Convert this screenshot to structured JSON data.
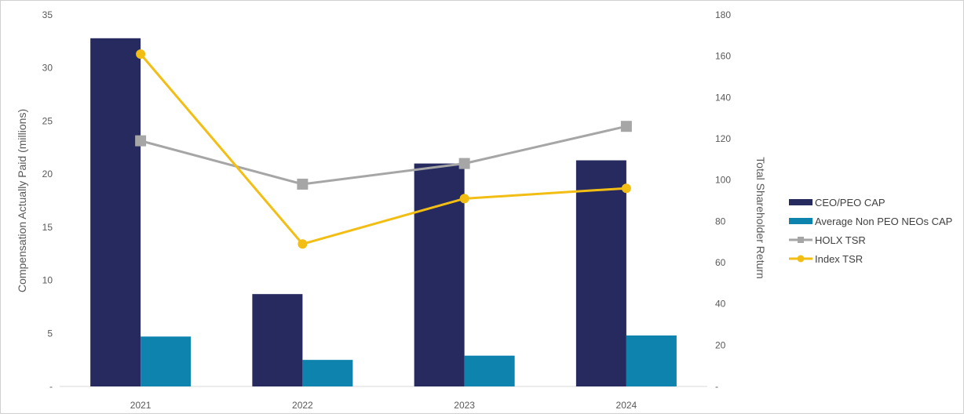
{
  "chart_data": {
    "type": "bar",
    "categories": [
      "2021",
      "2022",
      "2023",
      "2024"
    ],
    "series": [
      {
        "name": "CEO/PEO CAP",
        "type": "bar",
        "axis": "left",
        "color": "#262A5E",
        "values": [
          32.8,
          8.7,
          21.0,
          21.3
        ]
      },
      {
        "name": "Average Non PEO NEOs CAP",
        "type": "bar",
        "axis": "left",
        "color": "#0D83AE",
        "values": [
          4.7,
          2.5,
          2.9,
          4.8
        ]
      },
      {
        "name": "HOLX TSR",
        "type": "line",
        "axis": "right",
        "marker": "square",
        "color": "#A6A6A6",
        "values": [
          119,
          98,
          108,
          126
        ]
      },
      {
        "name": "Index TSR",
        "type": "line",
        "axis": "right",
        "marker": "circle",
        "color": "#F2BE14",
        "values": [
          161,
          69,
          91,
          96
        ]
      }
    ],
    "ylabel": "Compensation Actually Paid (millions)",
    "y2label": "Total Shareholder Return",
    "ylim": [
      0,
      35
    ],
    "y2lim": [
      0,
      180
    ],
    "yticks": [
      "-",
      "5",
      "10",
      "15",
      "20",
      "25",
      "30",
      "35"
    ],
    "y2ticks": [
      "-",
      "20",
      "40",
      "60",
      "80",
      "100",
      "120",
      "140",
      "160",
      "180"
    ],
    "grid": false,
    "legend_position": "right"
  }
}
